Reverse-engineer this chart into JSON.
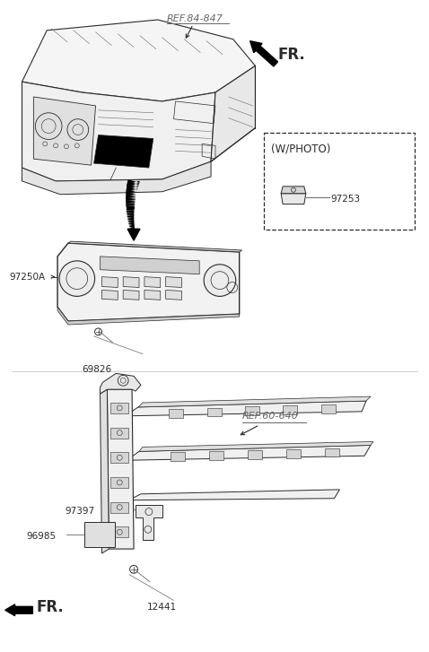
{
  "bg_color": "#ffffff",
  "line_color": "#2a2a2a",
  "gray_color": "#666666",
  "fig_width": 4.78,
  "fig_height": 7.27,
  "dpi": 100,
  "labels": {
    "ref_84_847": "REF.84-847",
    "FR_top": "FR.",
    "part_97250A": "97250A",
    "part_69826": "69826",
    "w_photo": "(W/PHOTO)",
    "part_97253": "97253",
    "ref_60_640": "REF.60-640",
    "part_97397": "97397",
    "part_96985": "96985",
    "part_12441": "12441",
    "FR_bottom": "FR."
  }
}
